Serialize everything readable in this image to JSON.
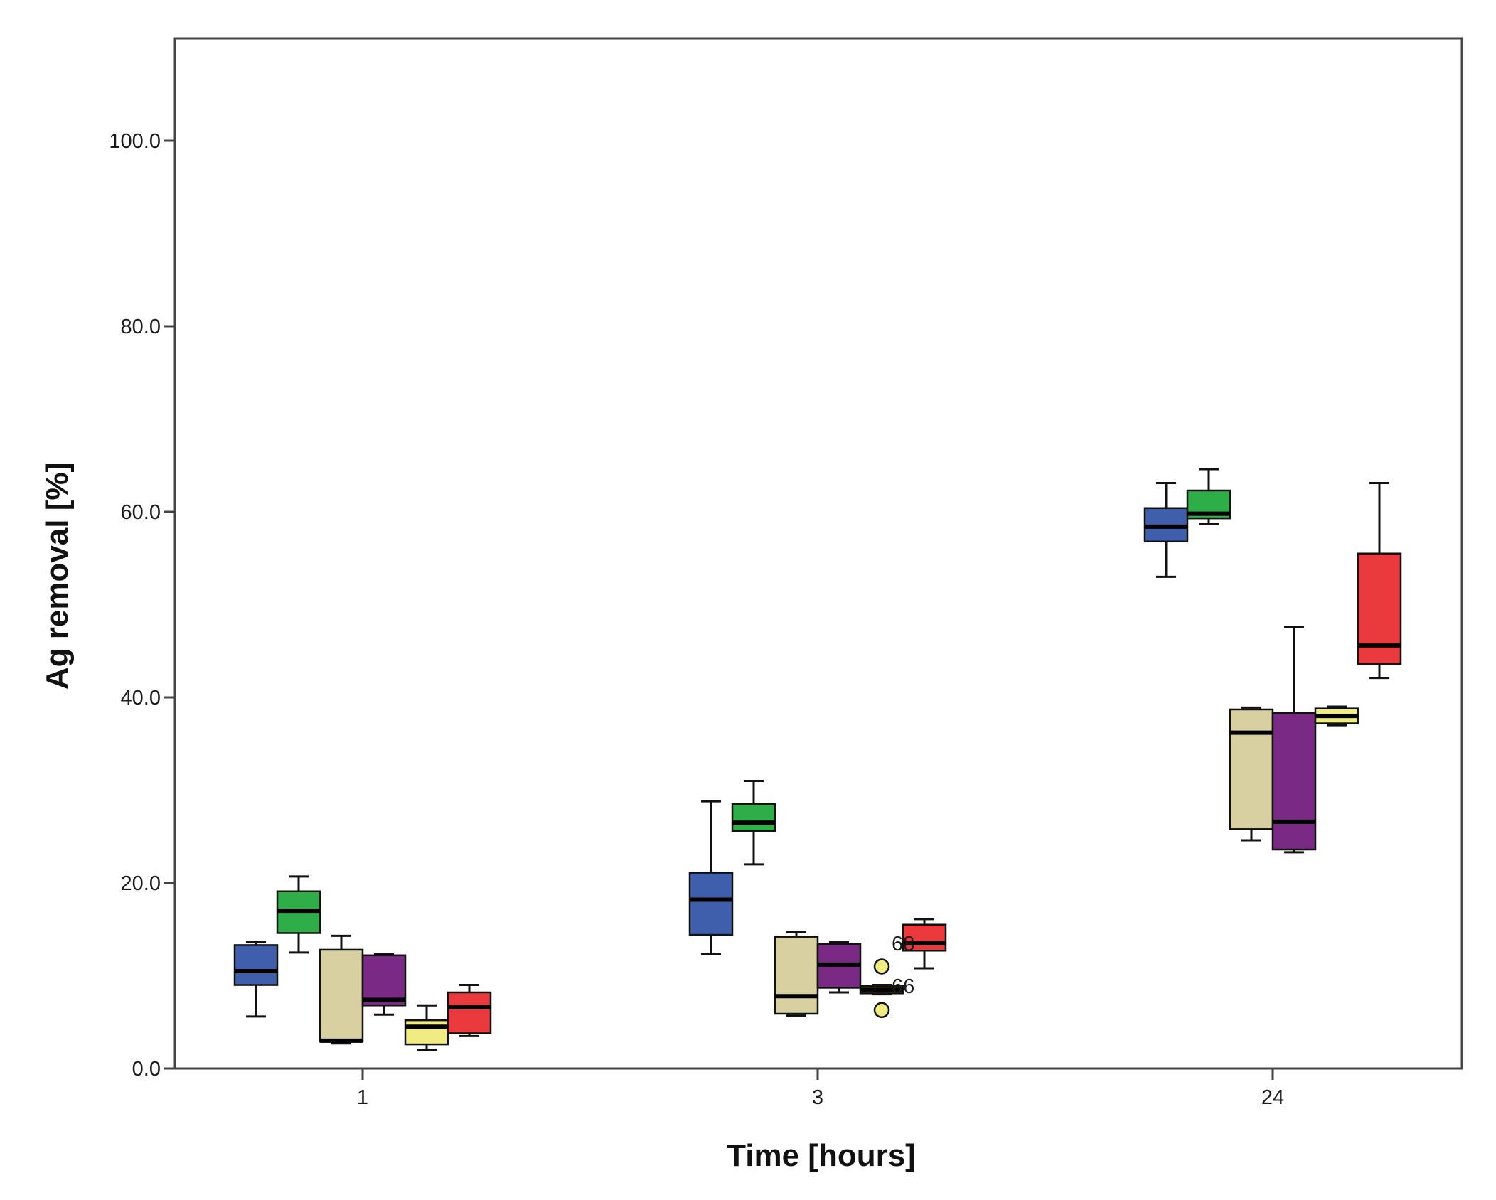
{
  "chart_data": {
    "type": "boxplot",
    "xlabel": "Time [hours]",
    "ylabel": "Ag removal [%]",
    "ylim": [
      0,
      111
    ],
    "yticks": [
      0,
      20,
      40,
      60,
      80,
      100
    ],
    "ytick_labels": [
      "0.0",
      "20.0",
      "40.0",
      "60.0",
      "80.0",
      "100.0"
    ],
    "categories": [
      "1",
      "3",
      "24"
    ],
    "grid": false,
    "series": [
      {
        "name": "blue",
        "color": "#3f5fad",
        "boxes": [
          {
            "category": "1",
            "min": 5.6,
            "q1": 9.0,
            "median": 10.5,
            "q3": 13.3,
            "max": 13.6
          },
          {
            "category": "3",
            "min": 12.3,
            "q1": 14.4,
            "median": 18.2,
            "q3": 21.1,
            "max": 28.8
          },
          {
            "category": "24",
            "min": 53.0,
            "q1": 56.8,
            "median": 58.4,
            "q3": 60.4,
            "max": 63.1
          }
        ]
      },
      {
        "name": "green",
        "color": "#2fad48",
        "boxes": [
          {
            "category": "1",
            "min": 12.5,
            "q1": 14.6,
            "median": 17.0,
            "q3": 19.1,
            "max": 20.7
          },
          {
            "category": "3",
            "min": 22.0,
            "q1": 25.6,
            "median": 26.5,
            "q3": 28.5,
            "max": 31.0
          },
          {
            "category": "24",
            "min": 58.7,
            "q1": 59.3,
            "median": 59.8,
            "q3": 62.3,
            "max": 64.6
          }
        ]
      },
      {
        "name": "tan",
        "color": "#d8d0a0",
        "boxes": [
          {
            "category": "1",
            "min": 2.7,
            "q1": 2.9,
            "median": 3.0,
            "q3": 12.8,
            "max": 14.3
          },
          {
            "category": "3",
            "min": 5.7,
            "q1": 5.9,
            "median": 7.8,
            "q3": 14.2,
            "max": 14.7
          },
          {
            "category": "24",
            "min": 24.6,
            "q1": 25.8,
            "median": 36.2,
            "q3": 38.7,
            "max": 38.9
          }
        ]
      },
      {
        "name": "purple",
        "color": "#7a2a85",
        "boxes": [
          {
            "category": "1",
            "min": 5.8,
            "q1": 6.8,
            "median": 7.4,
            "q3": 12.2,
            "max": 12.3
          },
          {
            "category": "3",
            "min": 8.2,
            "q1": 8.7,
            "median": 11.2,
            "q3": 13.4,
            "max": 13.6
          },
          {
            "category": "24",
            "min": 23.3,
            "q1": 23.6,
            "median": 26.6,
            "q3": 38.3,
            "max": 47.6
          }
        ]
      },
      {
        "name": "yellow",
        "color": "#f0ec84",
        "boxes": [
          {
            "category": "1",
            "min": 2.0,
            "q1": 2.6,
            "median": 4.5,
            "q3": 5.2,
            "max": 6.8
          },
          {
            "category": "3",
            "min": 8.0,
            "q1": 8.1,
            "median": 8.5,
            "q3": 8.9,
            "max": 9.0,
            "outliers": [
              {
                "value": 11.0,
                "label": ""
              },
              {
                "value": 6.3,
                "label": "66"
              }
            ]
          },
          {
            "category": "24",
            "min": 37.0,
            "q1": 37.2,
            "median": 38.0,
            "q3": 38.8,
            "max": 39.0
          }
        ]
      },
      {
        "name": "red",
        "color": "#eb3a3d",
        "boxes": [
          {
            "category": "1",
            "min": 3.5,
            "q1": 3.8,
            "median": 6.6,
            "q3": 8.2,
            "max": 9.0
          },
          {
            "category": "3",
            "min": 10.8,
            "q1": 12.7,
            "median": 13.5,
            "q3": 15.5,
            "max": 16.1,
            "label_left": "68"
          },
          {
            "category": "24",
            "min": 42.1,
            "q1": 43.6,
            "median": 45.6,
            "q3": 55.5,
            "max": 63.1
          }
        ]
      }
    ]
  }
}
